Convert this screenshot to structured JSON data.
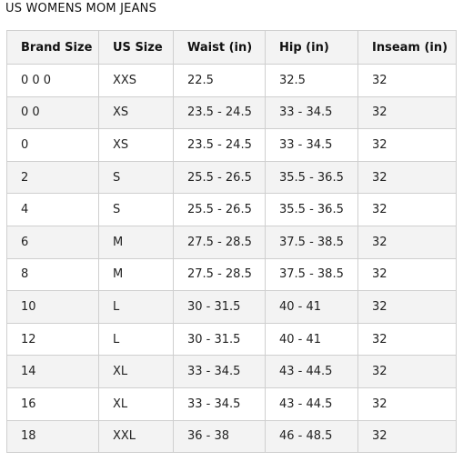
{
  "title": "US WOMENS MOM JEANS",
  "table": {
    "headers": [
      "Brand Size",
      "US Size",
      "Waist (in)",
      "Hip (in)",
      "Inseam (in)"
    ],
    "rows": [
      [
        "0 0 0",
        "XXS",
        "22.5",
        "32.5",
        "32"
      ],
      [
        "0 0",
        "XS",
        "23.5 - 24.5",
        "33 - 34.5",
        "32"
      ],
      [
        "0",
        "XS",
        "23.5 - 24.5",
        "33 - 34.5",
        "32"
      ],
      [
        "2",
        "S",
        "25.5 - 26.5",
        "35.5 - 36.5",
        "32"
      ],
      [
        "4",
        "S",
        "25.5 - 26.5",
        "35.5 - 36.5",
        "32"
      ],
      [
        "6",
        "M",
        "27.5 - 28.5",
        "37.5 - 38.5",
        "32"
      ],
      [
        "8",
        "M",
        "27.5 - 28.5",
        "37.5 - 38.5",
        "32"
      ],
      [
        "10",
        "L",
        "30 - 31.5",
        "40 - 41",
        "32"
      ],
      [
        "12",
        "L",
        "30 - 31.5",
        "40 - 41",
        "32"
      ],
      [
        "14",
        "XL",
        "33 - 34.5",
        "43 - 44.5",
        "32"
      ],
      [
        "16",
        "XL",
        "33 - 34.5",
        "43 - 44.5",
        "32"
      ],
      [
        "18",
        "XXL",
        "36 - 38",
        "46 - 48.5",
        "32"
      ]
    ]
  },
  "colors": {
    "header_bg": "#f3f3f3",
    "stripe_bg": "#f3f3f3",
    "border": "#cfcfcf",
    "text": "#111111"
  }
}
